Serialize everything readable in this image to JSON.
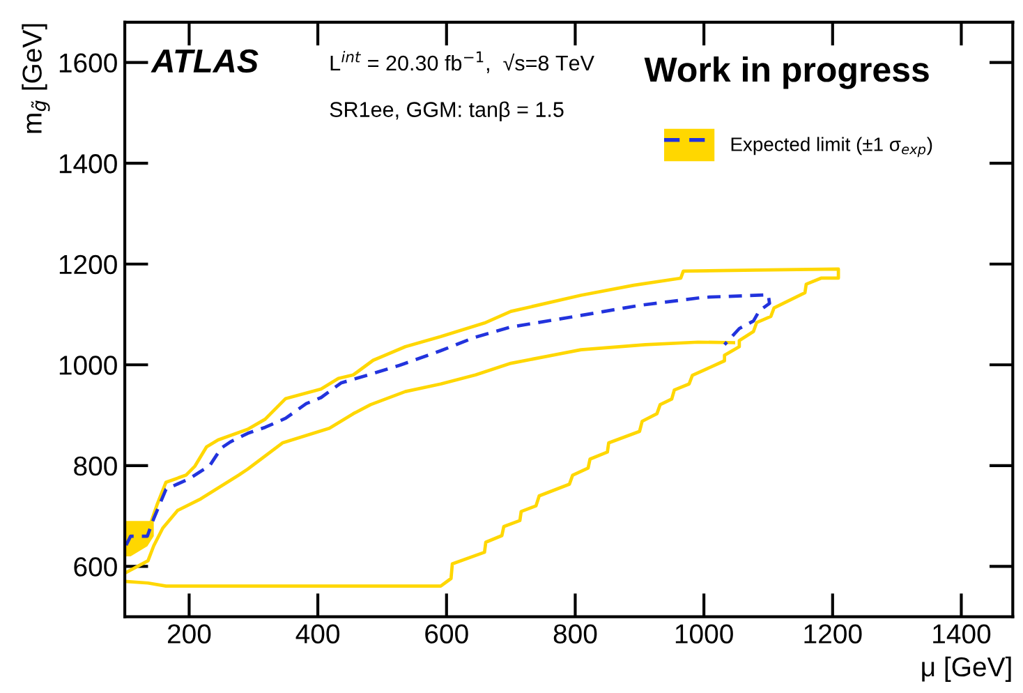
{
  "chart_data": {
    "type": "line",
    "xlabel": "μ [GeV]",
    "ylabel": "m$_{g̃}$ [GeV]",
    "xlim": [
      100,
      1480
    ],
    "ylim": [
      500,
      1680
    ],
    "xticks": [
      200,
      400,
      600,
      800,
      1000,
      1200,
      1400
    ],
    "yticks": [
      600,
      800,
      1000,
      1200,
      1400,
      1600
    ],
    "grid": false,
    "legend": "top right",
    "annotations": [
      "ATLAS",
      "L$^{int}$ = 20.30 fb$^{−1}$,  √s=8 TeV",
      "SR1ee, GGM: tanβ = 1.5",
      "Work in progress"
    ],
    "series": [
      {
        "color": "#ffd700",
        "line_style": "solid",
        "x": [
          102,
          136,
          150,
          164,
          195,
          209,
          227,
          245,
          291,
          318,
          350,
          405,
          432,
          455,
          486,
          536,
          591,
          659,
          700,
          809,
          891,
          964,
          968,
          1082,
          1209,
          1209,
          1182,
          1159,
          1157,
          1109,
          1104,
          1082,
          1077,
          1055,
          1055,
          1032,
          1032,
          982,
          977,
          954,
          950,
          932,
          927,
          904,
          900,
          852,
          850,
          823,
          820,
          796,
          791,
          744,
          739,
          716,
          714,
          689,
          686,
          661,
          659,
          609,
          607,
          591,
          164,
          136,
          102
        ],
        "values": [
          670,
          670,
          722,
          767,
          781,
          799,
          837,
          851,
          872,
          892,
          933,
          952,
          973,
          980,
          1009,
          1036,
          1056,
          1083,
          1106,
          1138,
          1158,
          1172,
          1186,
          1188,
          1190,
          1172,
          1172,
          1160,
          1143,
          1113,
          1096,
          1084,
          1066,
          1048,
          1036,
          1019,
          1008,
          979,
          962,
          950,
          932,
          921,
          903,
          888,
          868,
          845,
          827,
          813,
          795,
          781,
          763,
          740,
          720,
          709,
          691,
          679,
          661,
          648,
          628,
          605,
          576,
          561,
          561,
          567,
          570
        ]
      },
      {
        "color": "#ffd700",
        "line_style": "solid",
        "x": [
          1046,
          991,
          909,
          809,
          700,
          645,
          591,
          536,
          482,
          455,
          418,
          345,
          291,
          277,
          218,
          182,
          159,
          145,
          136,
          102
        ],
        "values": [
          1044,
          1045,
          1040,
          1030,
          1003,
          980,
          962,
          947,
          921,
          903,
          874,
          845,
          793,
          781,
          734,
          711,
          676,
          641,
          611,
          588
        ]
      },
      {
        "name": "Expected limit (±1 σ$_{exp}$)",
        "color": "#2233dd",
        "line_style": "dashed",
        "lower": [
          620,
          620,
          640,
          660,
          null,
          null,
          null,
          null,
          null,
          null,
          null,
          null,
          null,
          null,
          null,
          null,
          null,
          null,
          null,
          null,
          null,
          null,
          null,
          null,
          null,
          null,
          null,
          null,
          null
        ],
        "upper": [
          690,
          690,
          690,
          690,
          null,
          null,
          null,
          null,
          null,
          null,
          null,
          null,
          null,
          null,
          null,
          null,
          null,
          null,
          null,
          null,
          null,
          null,
          null,
          null,
          null,
          null,
          null,
          null,
          null
        ],
        "x": [
          102,
          109,
          135,
          145,
          164,
          200,
          232,
          250,
          264,
          291,
          318,
          350,
          382,
          405,
          436,
          473,
          527,
          591,
          645,
          700,
          809,
          900,
          1000,
          1100,
          1102,
          1086,
          1077,
          1055,
          1032
        ],
        "values": [
          642,
          660,
          660,
          695,
          753,
          774,
          800,
          835,
          847,
          864,
          876,
          894,
          923,
          935,
          964,
          978,
          999,
          1028,
          1055,
          1075,
          1098,
          1118,
          1134,
          1139,
          1122,
          1107,
          1087,
          1072,
          1040
        ]
      }
    ]
  }
}
